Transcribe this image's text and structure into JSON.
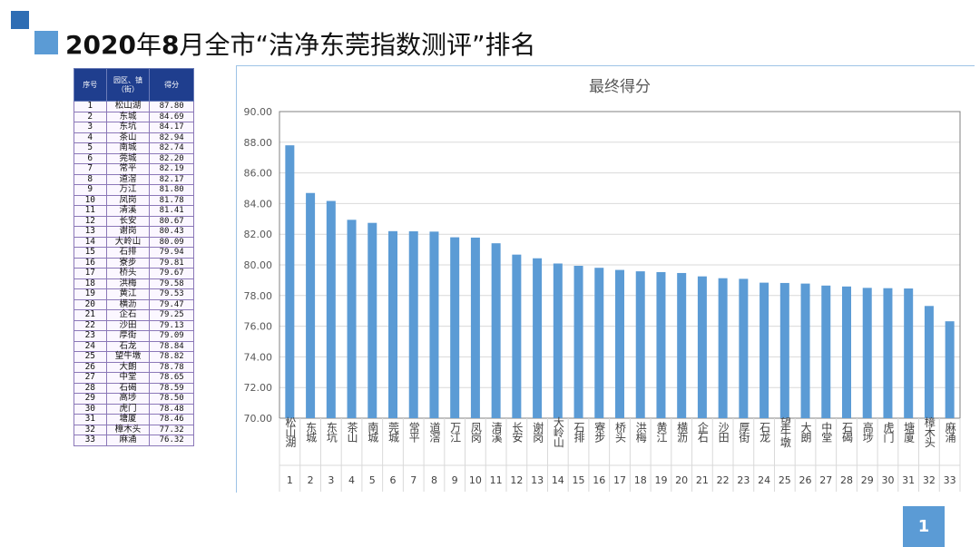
{
  "header": {
    "year": "2020",
    "part1": "年",
    "month": "8",
    "part2": "月全市“洁净东莞指数测评”排名"
  },
  "table": {
    "headers": [
      "序号",
      "园区、镇（街）",
      "得分"
    ],
    "rows": [
      [
        "1",
        "松山湖",
        "87.80"
      ],
      [
        "2",
        "东城",
        "84.69"
      ],
      [
        "3",
        "东坑",
        "84.17"
      ],
      [
        "4",
        "茶山",
        "82.94"
      ],
      [
        "5",
        "南城",
        "82.74"
      ],
      [
        "6",
        "莞城",
        "82.20"
      ],
      [
        "7",
        "常平",
        "82.19"
      ],
      [
        "8",
        "道滘",
        "82.17"
      ],
      [
        "9",
        "万江",
        "81.80"
      ],
      [
        "10",
        "凤岗",
        "81.78"
      ],
      [
        "11",
        "清溪",
        "81.41"
      ],
      [
        "12",
        "长安",
        "80.67"
      ],
      [
        "13",
        "谢岗",
        "80.43"
      ],
      [
        "14",
        "大岭山",
        "80.09"
      ],
      [
        "15",
        "石排",
        "79.94"
      ],
      [
        "16",
        "寮步",
        "79.81"
      ],
      [
        "17",
        "桥头",
        "79.67"
      ],
      [
        "18",
        "洪梅",
        "79.58"
      ],
      [
        "19",
        "黄江",
        "79.53"
      ],
      [
        "20",
        "横沥",
        "79.47"
      ],
      [
        "21",
        "企石",
        "79.25"
      ],
      [
        "22",
        "沙田",
        "79.13"
      ],
      [
        "23",
        "厚街",
        "79.09"
      ],
      [
        "24",
        "石龙",
        "78.84"
      ],
      [
        "25",
        "望牛墩",
        "78.82"
      ],
      [
        "26",
        "大朗",
        "78.78"
      ],
      [
        "27",
        "中堂",
        "78.65"
      ],
      [
        "28",
        "石碣",
        "78.59"
      ],
      [
        "29",
        "高埗",
        "78.50"
      ],
      [
        "30",
        "虎门",
        "78.48"
      ],
      [
        "31",
        "塘厦",
        "78.46"
      ],
      [
        "32",
        "樟木头",
        "77.32"
      ],
      [
        "33",
        "麻涌",
        "76.32"
      ]
    ]
  },
  "chart_data": {
    "type": "bar",
    "title": "最终得分",
    "categories": [
      "松山湖",
      "东城",
      "东坑",
      "茶山",
      "南城",
      "莞城",
      "常平",
      "道滘",
      "万江",
      "凤岗",
      "清溪",
      "长安",
      "谢岗",
      "大岭山",
      "石排",
      "寮步",
      "桥头",
      "洪梅",
      "黄江",
      "横沥",
      "企石",
      "沙田",
      "厚街",
      "石龙",
      "望牛墩",
      "大朗",
      "中堂",
      "石碣",
      "高埗",
      "虎门",
      "塘厦",
      "樟木头",
      "麻涌"
    ],
    "ranks": [
      "1",
      "2",
      "3",
      "4",
      "5",
      "6",
      "7",
      "8",
      "9",
      "10",
      "11",
      "12",
      "13",
      "14",
      "15",
      "16",
      "17",
      "18",
      "19",
      "20",
      "21",
      "22",
      "23",
      "24",
      "25",
      "26",
      "27",
      "28",
      "29",
      "30",
      "31",
      "32",
      "33"
    ],
    "values": [
      87.8,
      84.69,
      84.17,
      82.94,
      82.74,
      82.2,
      82.19,
      82.17,
      81.8,
      81.78,
      81.41,
      80.67,
      80.43,
      80.09,
      79.94,
      79.81,
      79.67,
      79.58,
      79.53,
      79.47,
      79.25,
      79.13,
      79.09,
      78.84,
      78.82,
      78.78,
      78.65,
      78.59,
      78.5,
      78.48,
      78.46,
      77.32,
      76.32
    ],
    "ylim": [
      70,
      90
    ],
    "yticks": [
      "70.00",
      "72.00",
      "74.00",
      "76.00",
      "78.00",
      "80.00",
      "82.00",
      "84.00",
      "86.00",
      "88.00",
      "90.00"
    ],
    "grid": true,
    "bar_color": "#5b9bd5"
  },
  "page_number": "1"
}
